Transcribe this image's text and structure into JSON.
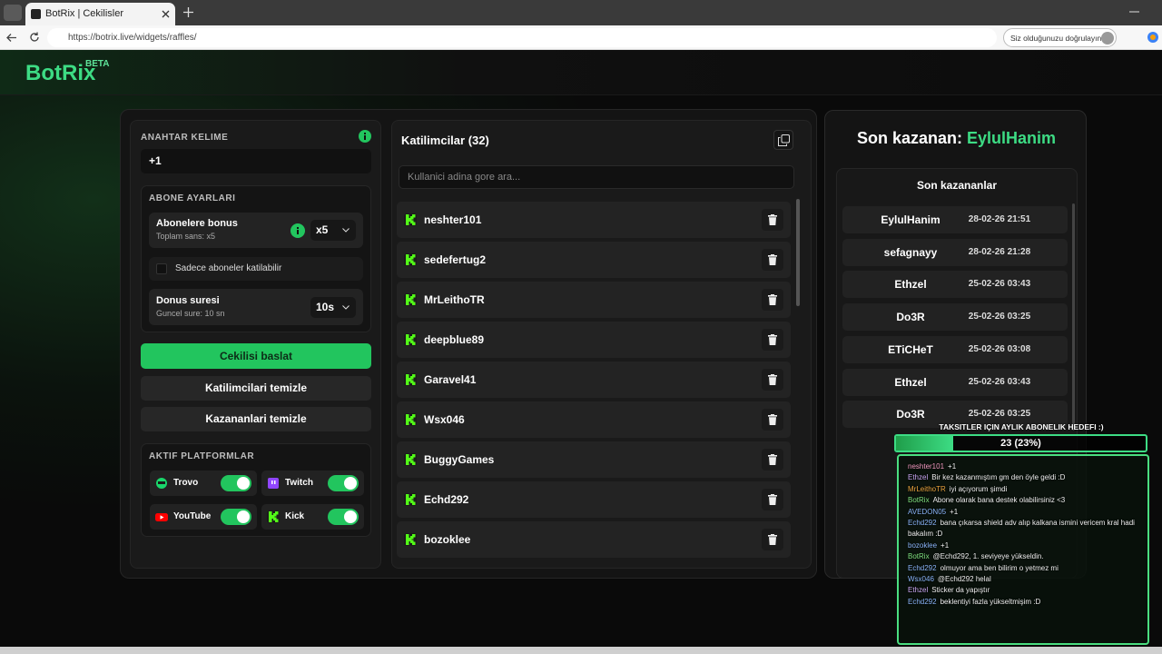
{
  "browser": {
    "tab_title": "BotRix | Cekilisler",
    "url": "https://botrix.live/widgets/raffles/",
    "profile_prompt": "Siz olduğunuzu doğrulayın"
  },
  "header": {
    "logo": "BotRix",
    "badge": "BETA"
  },
  "settings": {
    "keyword_label": "ANAHTAR KELIME",
    "keyword": "+1",
    "subscriber_title": "ABONE AYARLARI",
    "bonus_label": "Abonelere bonus",
    "bonus_note": "Toplam sans: x5",
    "bonus_value": "x5",
    "subscribers_only": "Sadece aboneler katilabilir",
    "duration_label": "Donus suresi",
    "duration_note": "Guncel sure: 10 sn",
    "duration_value": "10s",
    "start_button": "Cekilisi baslat",
    "clear_participants": "Katilimcilari temizle",
    "clear_winners": "Kazananlari temizle",
    "platforms_title": "AKTIF PLATFORMLAR",
    "platforms": [
      {
        "name": "Trovo",
        "enabled": true
      },
      {
        "name": "Twitch",
        "enabled": true
      },
      {
        "name": "YouTube",
        "enabled": true
      },
      {
        "name": "Kick",
        "enabled": true
      }
    ]
  },
  "participants": {
    "title": "Katilimcilar (32)",
    "search_placeholder": "Kullanici adina gore ara...",
    "users": [
      "neshter101",
      "sedefertug2",
      "MrLeithoTR",
      "deepblue89",
      "Garavel41",
      "Wsx046",
      "BuggyGames",
      "Echd292",
      "bozoklee"
    ]
  },
  "winners": {
    "label": "Son kazanan:",
    "latest": "EylulHanim",
    "list_title": "Son kazananlar",
    "rows": [
      {
        "name": "EylulHanim",
        "date": "28-02-26 21:51"
      },
      {
        "name": "sefagnayy",
        "date": "28-02-26 21:28"
      },
      {
        "name": "Ethzel",
        "date": "25-02-26 03:43"
      },
      {
        "name": "Do3R",
        "date": "25-02-26 03:25"
      },
      {
        "name": "ETiCHeT",
        "date": "25-02-26 03:08"
      },
      {
        "name": "Ethzel",
        "date": "25-02-26 03:43"
      },
      {
        "name": "Do3R",
        "date": "25-02-26 03:25"
      }
    ]
  },
  "overlay": {
    "goal_title": "TAKSITLER IÇIN AYLIK ABONELIK HEDEFI :)",
    "goal_label": "23 (23%)",
    "goal_percent": 23,
    "messages": [
      {
        "user": "neshter101",
        "color": "#f29ac0",
        "text": "+1"
      },
      {
        "user": "Ethzel",
        "color": "#c9a6f2",
        "text": "Bir kez kazanmıştım gm den öyle geldi :D"
      },
      {
        "user": "MrLeithoTR",
        "color": "#e8a23e",
        "text": "iyi açıyorum şimdi"
      },
      {
        "user": "BotRix",
        "color": "#7fe07f",
        "text": "Abone olarak bana destek olabilirsiniz <3"
      },
      {
        "user": "AVEDON05",
        "color": "#8ab4f8",
        "text": "+1"
      },
      {
        "user": "Echd292",
        "color": "#8ab4f8",
        "text": "bana çıkarsa shield adv alıp kalkana ismini vericem kral hadi bakalım :D"
      },
      {
        "user": "bozoklee",
        "color": "#8ab4f8",
        "text": "+1"
      },
      {
        "user": "BotRix",
        "color": "#7fe07f",
        "text": "@Echd292, 1. seviyeye yükseldin."
      },
      {
        "user": "Echd292",
        "color": "#8ab4f8",
        "text": "olmuyor ama ben bilirim o yetmez mi"
      },
      {
        "user": "Wsx046",
        "color": "#8ab4f8",
        "text": "@Echd292 helal"
      },
      {
        "user": "Ethzel",
        "color": "#c9a6f2",
        "text": "Sticker da yapıştır"
      },
      {
        "user": "Echd292",
        "color": "#8ab4f8",
        "text": "beklentiyi fazla yükseltmişim :D"
      }
    ]
  }
}
